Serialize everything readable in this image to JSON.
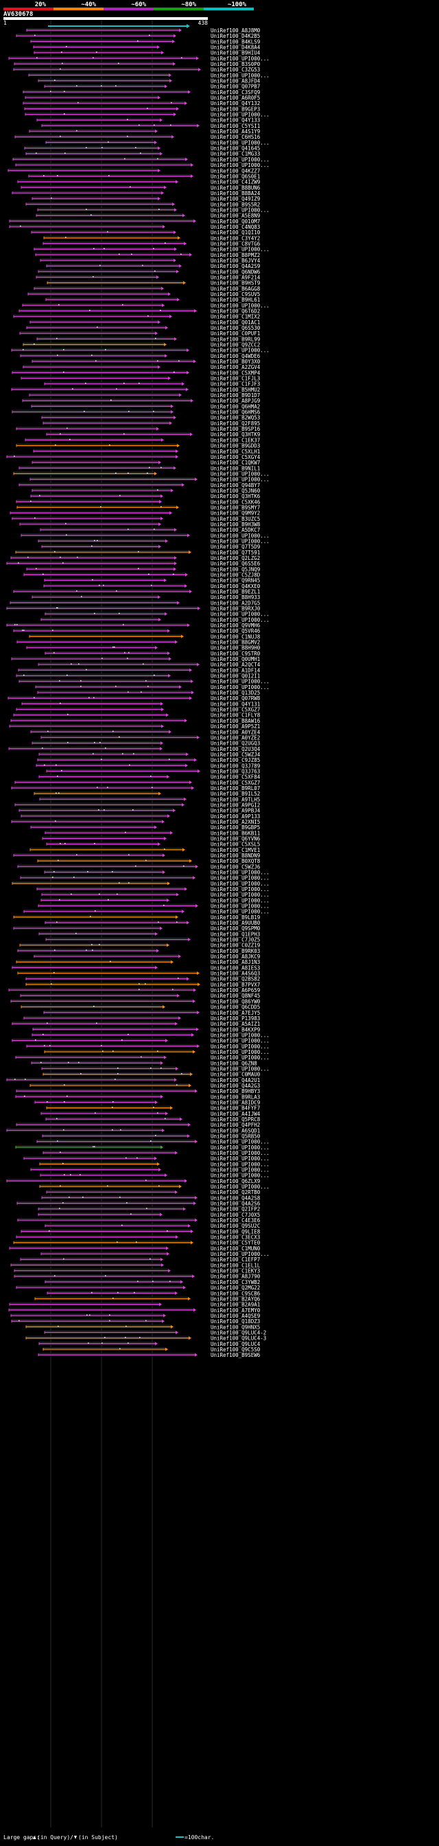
{
  "header": {
    "scale_labels": [
      "20%",
      "~40%",
      "~60%",
      "~80%",
      "~100%"
    ],
    "scale_colors": [
      "#e01020",
      "#ff7f00",
      "#b020c0",
      "#10a010",
      "#00c0c0"
    ],
    "query_name": "AV630678",
    "query_start": "1",
    "query_end": "438"
  },
  "legend": {
    "large_gaps_label": "Large gaps:",
    "in_query_label": "(in Query)/",
    "in_subject_label": "(in Subject)",
    "scale_label": "=100char."
  },
  "row_colors": {
    "magenta": "#e040e0",
    "orange": "#ff8c00",
    "green": "#20c020",
    "cyan": "#20c0c0"
  },
  "hits": [
    "UniRef100_A8J8M0",
    "UniRef100_D4K2B5",
    "UniRef100_B4KLS9",
    "UniRef100_D4K8A4",
    "UniRef100_B9HIU4",
    "UniRef100_UPI000...",
    "UniRef100_B3S0P0",
    "UniRef100_C3ZG53",
    "UniRef100_UPI000...",
    "UniRef100_A8JFD4",
    "UniRef100_Q07PB7",
    "UniRef100_C3SFQ9",
    "UniRef100_A6R0F5",
    "UniRef100_Q4Y132",
    "UniRef100_B9GEP3",
    "UniRef100_UPI000...",
    "UniRef100_Q4Y133",
    "UniRef100_C5YSI1",
    "UniRef100_A4S1Y9",
    "UniRef100_C6HS16",
    "UniRef100_UPI000...",
    "UniRef100_Q41645",
    "UniRef100_C1MG33",
    "UniRef100_UPI000...",
    "UniRef100_UPI000...",
    "UniRef100_Q4KZZ7",
    "UniRef100_Q6S0E1",
    "UniRef100_C4IZW9",
    "UniRef100_B8BUN6",
    "UniRef100_B8BA24",
    "UniRef100_Q49IZ9",
    "UniRef100_B9S5R2",
    "UniRef100_UPI000...",
    "UniRef100_A5E8N9",
    "UniRef100_Q010M7",
    "UniRef100_C4NQ83",
    "UniRef100_Q1QI10",
    "UniRef100_C3Y4Y2",
    "UniRef100_C8VTG6",
    "UniRef100_UPI000...",
    "UniRef100_B8PMZ2",
    "UniRef100_B6JVY4",
    "UniRef100_Q4A2S9",
    "UniRef100_Q6NDW6",
    "UniRef100_A9F214",
    "UniRef100_B9HST9",
    "UniRef100_B6AGG8",
    "UniRef100_C9SUV5",
    "UniRef100_B9HL61",
    "UniRef100_UPI000...",
    "UniRef100_Q6T6D2",
    "UniRef100_C1MIX2",
    "UniRef100_Q01AC1",
    "UniRef100_Q6S530",
    "UniRef100_C0PUF1",
    "UniRef100_B9RL99",
    "UniRef100_Q9ZCC2",
    "UniRef100_UPI000...",
    "UniRef100_Q4WDE6",
    "UniRef100_B0Y3X0",
    "UniRef100_A2ZGV4",
    "UniRef100_C5XMP4",
    "UniRef100_C1FJL3",
    "UniRef100_C1FJF3",
    "UniRef100_B5HMU2",
    "UniRef100_B9D1D7",
    "UniRef100_A8PJG9",
    "UniRef100_Q6HMA2",
    "UniRef100_Q6HMS6",
    "UniRef100_B2WQ53",
    "UniRef100_Q2F895",
    "UniRef100_B9SP16",
    "UniRef100_Q3HTK9",
    "UniRef100_C1EK37",
    "UniRef100_B9GDD3",
    "UniRef100_C5XLH1",
    "UniRef100_C5XGY4",
    "UniRef100_C1QKW7",
    "UniRef100_B9NIL1",
    "UniRef100_UPI000...",
    "UniRef100_UPI000...",
    "UniRef100_Q94BY7",
    "UniRef100_Q5JN60",
    "UniRef100_Q3HTK6",
    "UniRef100_C5XK46",
    "UniRef100_B9SMY7",
    "UniRef100_Q9M9Y2",
    "UniRef100_B3UZC5",
    "UniRef100_B9H3W8",
    "UniRef100_A5DKC7",
    "UniRef100_UPI000...",
    "UniRef100_UPI000...",
    "UniRef100_Q7T5D9",
    "UniRef100_Q7T591",
    "UniRef100_Q2LZG2",
    "UniRef100_Q6S5E6",
    "UniRef100_Q5JNQ9",
    "UniRef100_C5ZJ8D",
    "UniRef100_Q9RN45",
    "UniRef100_Q4KXE0",
    "UniRef100_B9EZL1",
    "UniRef100_B8H933",
    "UniRef100_A2D7G5",
    "UniRef100_B9RXJ0",
    "UniRef100_UPI000...",
    "UniRef100_UPI000...",
    "UniRef100_Q9VMH6",
    "UniRef100_Q5VR46",
    "UniRef100_C1NUJ8",
    "UniRef100_B8GMV2",
    "UniRef100_B8H9H0",
    "UniRef100_C9STR0",
    "UniRef100_Q0UMH1",
    "UniRef100_A2QCT4",
    "UniRef100_A1DF14",
    "UniRef100_Q0I2I1",
    "UniRef100_UPI000...",
    "UniRef100_UPI000...",
    "UniRef100_Q13D25",
    "UniRef100_Q07RW8",
    "UniRef100_Q4Y131",
    "UniRef100_C5XGZ7",
    "UniRef100_C1FLY8",
    "UniRef100_B8AW16",
    "UniRef100_A9P5Z1",
    "UniRef100_A0YZE4",
    "UniRef100_A0YZE2",
    "UniRef100_Q2UGQ3",
    "UniRef100_Q2U3Q4",
    "UniRef100_C5WZJ4",
    "UniRef100_C9JZ85",
    "UniRef100_Q3J789",
    "UniRef100_Q3J763",
    "UniRef100_C5XF84",
    "UniRef100_C5XGZ7",
    "UniRef100_B9RL07",
    "UniRef100_B9IL52",
    "UniRef100_A9TLH5",
    "UniRef100_A9PGI2",
    "UniRef100_A9PBJ4",
    "UniRef100_A9P133",
    "UniRef100_A2XNI5",
    "UniRef100_B9GBP5",
    "UniRef100_B6KB11",
    "UniRef100_Q6YVN6",
    "UniRef100_C5XSL5",
    "UniRef100_C1MVE1",
    "UniRef100_B8NDN9",
    "UniRef100_B0XQT8",
    "UniRef100_C5WZJ6",
    "UniRef100_UPI000...",
    "UniRef100_UPI000...",
    "UniRef100_UPI000...",
    "UniRef100_UPI000...",
    "UniRef100_UPI000...",
    "UniRef100_UPI000...",
    "UniRef100_UPI000...",
    "UniRef100_UPI000...",
    "UniRef100_B9LB19",
    "UniRef100_A9UUB0",
    "UniRef100_Q9SPM0",
    "UniRef100_Q1EPH3",
    "UniRef100_C7J0Z5",
    "UniRef100_C0ZZ19",
    "UniRef100_B9RK03",
    "UniRef100_A8JKC9",
    "UniRef100_A8J1N3",
    "UniRef100_A8IES3",
    "UniRef100_A4S6Q3",
    "UniRef100_Q2BS82",
    "UniRef100_B7PVX7",
    "UniRef100_A6P659",
    "UniRef100_Q8NF45",
    "UniRef100_Q86YW0",
    "UniRef100_Q6CDD5",
    "UniRef100_A7EJY5",
    "UniRef100_P13983",
    "UniRef100_A5AIZ1",
    "UniRef100_B4KXP9",
    "UniRef100_UPI000...",
    "UniRef100_UPI000...",
    "UniRef100_UPI000...",
    "UniRef100_UPI000...",
    "UniRef100_UPI000...",
    "UniRef100_Q6ZN8",
    "UniRef100_UPI000...",
    "UniRef100_C0MAU0",
    "UniRef100_Q4A2U1",
    "UniRef100_Q4A2G3",
    "UniRef100_B9HBY3",
    "UniRef100_B9RLA3",
    "UniRef100_A8IDC9",
    "UniRef100_B4FYF7",
    "UniRef100_A4IJW4",
    "UniRef100_Q5PRC8",
    "UniRef100_Q4PFH2",
    "UniRef100_A6SQD1",
    "UniRef100_Q5RB50",
    "UniRef100_UPI000...",
    "UniRef100_UPI000...",
    "UniRef100_UPI000...",
    "UniRef100_UPI000...",
    "UniRef100_UPI000...",
    "UniRef100_UPI000...",
    "UniRef100_UPI000...",
    "UniRef100_Q6ZLX9",
    "UniRef100_UPI000...",
    "UniRef100_Q2RTB0",
    "UniRef100_Q4A2S8",
    "UniRef100_Q4A2S6",
    "UniRef100_Q2IFP2",
    "UniRef100_C7J0X5",
    "UniRef100_C4E3E6",
    "UniRef100_Q9SU2C",
    "UniRef100_Q9LIE8",
    "UniRef100_C3ECX3",
    "UniRef100_C5YTE0",
    "UniRef100_C1MUN0",
    "UniRef100_UPI000...",
    "UniRef100_C1EFP7",
    "UniRef100_C1EL1L",
    "UniRef100_C1EKY3",
    "UniRef100_A8J790",
    "UniRef100_C3YWB2",
    "UniRef100_Q2MG22",
    "UniRef100_C9SCB6",
    "UniRef100_B2AYQ6",
    "UniRef100_B2A9A1",
    "UniRef100_A7EMY0",
    "UniRef100_A4QSE9",
    "UniRef100_Q18DZ3",
    "UniRef100_Q9HNX5",
    "UniRef100_Q9LUC4-2",
    "UniRef100_Q9LUC4-3",
    "UniRef100_Q9LUC4",
    "UniRef100_Q9C5S0",
    "UniRef100_B9SEW6"
  ]
}
